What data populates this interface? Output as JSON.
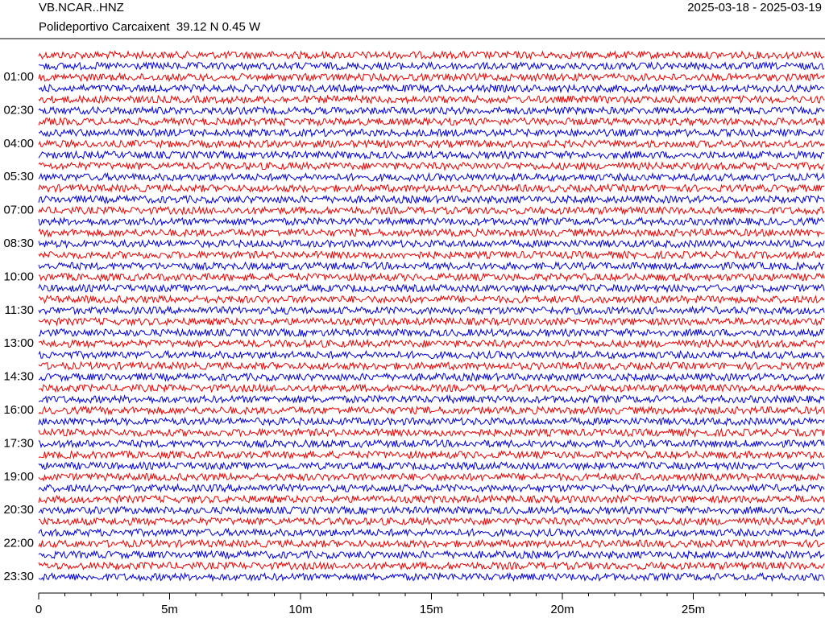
{
  "chart_data": {
    "type": "helicorder",
    "title": "VB.NCAR..HNZ",
    "subtitle": "Polideportivo Carcaixent  39.12 N 0.45 W",
    "date_range": "2025-03-18 - 2025-03-19",
    "row_labels": [
      null,
      null,
      "01:00",
      null,
      null,
      "02:30",
      null,
      null,
      "04:00",
      null,
      null,
      "05:30",
      null,
      null,
      "07:00",
      null,
      null,
      "08:30",
      null,
      null,
      "10:00",
      null,
      null,
      "11:30",
      null,
      null,
      "13:00",
      null,
      null,
      "14:30",
      null,
      null,
      "16:00",
      null,
      null,
      "17:30",
      null,
      null,
      "19:00",
      null,
      null,
      "20:30",
      null,
      null,
      "22:00",
      null,
      null,
      "23:30"
    ],
    "colors": [
      "#ee0000",
      "#0000dd"
    ],
    "xlim": [
      0,
      30
    ],
    "xticks": [
      0,
      {
        "value": 5,
        "label": "5m"
      },
      {
        "value": 10,
        "label": "10m"
      },
      {
        "value": 15,
        "label": "15m"
      },
      {
        "value": 20,
        "label": "20m"
      },
      {
        "value": 25,
        "label": "25m"
      }
    ],
    "xminorticks": [
      1,
      2,
      3,
      4,
      6,
      7,
      8,
      9,
      11,
      12,
      13,
      14,
      16,
      17,
      18,
      19,
      21,
      22,
      23,
      24,
      26,
      27,
      28,
      29,
      30
    ]
  }
}
